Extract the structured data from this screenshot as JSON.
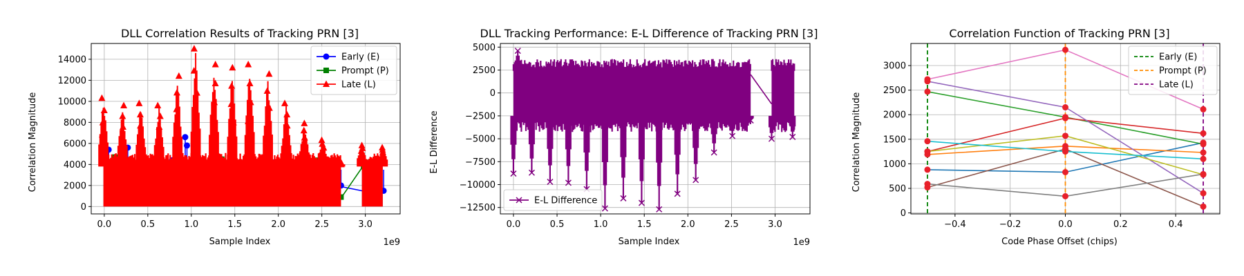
{
  "chart_data": [
    {
      "type": "line",
      "title": "DLL Correlation Results of Tracking PRN [3]",
      "xlabel": "Sample Index",
      "ylabel": "Correlation Magnitude",
      "x_offset_label": "1e9",
      "xlim": [
        -0.15,
        3.4
      ],
      "ylim": [
        -700,
        15500
      ],
      "xticks": [
        0.0,
        0.5,
        1.0,
        1.5,
        2.0,
        2.5,
        3.0
      ],
      "xtick_labels": [
        "0.0",
        "0.5",
        "1.0",
        "1.5",
        "2.0",
        "2.5",
        "3.0"
      ],
      "yticks": [
        0,
        2000,
        4000,
        6000,
        8000,
        10000,
        12000,
        14000
      ],
      "ytick_labels": [
        "0",
        "2000",
        "4000",
        "6000",
        "8000",
        "10000",
        "12000",
        "14000"
      ],
      "grid": true,
      "legend_position": "top-right",
      "series": [
        {
          "name": "Early (E)",
          "color": "#0000ff",
          "marker": "circle",
          "x": [
            0.05,
            0.27,
            0.45,
            0.78,
            0.93,
            0.95,
            1.33,
            1.72,
            1.95,
            2.72,
            3.21
          ],
          "values": [
            5400,
            5600,
            4600,
            4400,
            6600,
            5800,
            4600,
            4400,
            4200,
            2000,
            1500
          ]
        },
        {
          "name": "Prompt (P)",
          "color": "#008000",
          "marker": "square",
          "x": [
            0.12,
            0.42,
            0.88,
            1.35,
            1.65,
            1.82,
            2.42,
            2.72,
            2.98
          ],
          "values": [
            4700,
            4900,
            4400,
            4500,
            4800,
            4600,
            4400,
            900,
            3800
          ]
        },
        {
          "name": "Late (L)",
          "color": "#ff0000",
          "marker": "triangle",
          "x": [
            -0.01,
            0.21,
            0.42,
            0.63,
            0.84,
            1.05,
            1.26,
            1.47,
            1.67,
            1.88,
            2.09,
            2.3,
            2.51,
            2.71,
            2.96,
            3.2
          ],
          "values": [
            10300,
            9600,
            9800,
            9600,
            12400,
            15000,
            13500,
            13200,
            13500,
            12600,
            9800,
            7900,
            6300,
            4000,
            5800,
            5600
          ]
        }
      ]
    },
    {
      "type": "line",
      "title": "DLL Tracking Performance: E-L Difference of Tracking PRN [3]",
      "xlabel": "Sample Index",
      "ylabel": "E-L Difference",
      "x_offset_label": "1e9",
      "xlim": [
        -0.15,
        3.4
      ],
      "ylim": [
        -13200,
        5400
      ],
      "xticks": [
        0.0,
        0.5,
        1.0,
        1.5,
        2.0,
        2.5,
        3.0
      ],
      "xtick_labels": [
        "0.0",
        "0.5",
        "1.0",
        "1.5",
        "2.0",
        "2.5",
        "3.0"
      ],
      "yticks": [
        -12500,
        -10000,
        -7500,
        -5000,
        -2500,
        0,
        2500,
        5000
      ],
      "ytick_labels": [
        "−12500",
        "−10000",
        "−7500",
        "−5000",
        "−2500",
        "0",
        "2500",
        "5000"
      ],
      "grid": true,
      "legend_position": "lower-left",
      "series": [
        {
          "name": "E-L Difference",
          "color": "#800080",
          "marker": "x",
          "x": [
            0.0,
            0.05,
            0.21,
            0.42,
            0.63,
            0.84,
            1.05,
            1.26,
            1.47,
            1.67,
            1.88,
            2.09,
            2.3,
            2.51,
            2.72,
            2.96,
            3.2
          ],
          "values": [
            -8800,
            4600,
            -8700,
            -9700,
            -9800,
            -10500,
            -12600,
            -11500,
            -12000,
            -12700,
            -11000,
            -9500,
            -6500,
            -4700,
            -3000,
            -5000,
            -4800
          ]
        }
      ]
    },
    {
      "type": "line",
      "title": "Correlation Function of Tracking PRN [3]",
      "xlabel": "Code Phase Offset (chips)",
      "ylabel": "Correlation Magnitude",
      "xlim": [
        -0.56,
        0.56
      ],
      "ylim": [
        -20,
        3450
      ],
      "xticks": [
        -0.4,
        -0.2,
        0.0,
        0.2,
        0.4
      ],
      "xtick_labels": [
        "−0.4",
        "−0.2",
        "0.0",
        "0.2",
        "0.4"
      ],
      "yticks": [
        0,
        500,
        1000,
        1500,
        2000,
        2500,
        3000
      ],
      "ytick_labels": [
        "0",
        "500",
        "1000",
        "1500",
        "2000",
        "2500",
        "3000"
      ],
      "grid": true,
      "legend_position": "top-right",
      "x": [
        -0.5,
        0.0,
        0.5
      ],
      "vlines": [
        {
          "name": "Early (E)",
          "x": -0.5,
          "color": "#008000"
        },
        {
          "name": "Prompt (P)",
          "x": 0.0,
          "color": "#ff8c00"
        },
        {
          "name": "Late (L)",
          "x": 0.5,
          "color": "#800080"
        }
      ],
      "series": [
        {
          "color": "#1f77b4",
          "values": [
            880,
            830,
            1430
          ]
        },
        {
          "color": "#ff7f0e",
          "values": [
            1190,
            1360,
            1230
          ]
        },
        {
          "color": "#2ca02c",
          "values": [
            2470,
            1950,
            1400
          ]
        },
        {
          "color": "#d62728",
          "values": [
            1250,
            1930,
            1620
          ]
        },
        {
          "color": "#9467bd",
          "values": [
            2680,
            2150,
            400
          ]
        },
        {
          "color": "#8c564b",
          "values": [
            520,
            1300,
            130
          ]
        },
        {
          "color": "#e377c2",
          "values": [
            2720,
            3320,
            2110
          ]
        },
        {
          "color": "#7f7f7f",
          "values": [
            590,
            340,
            790
          ]
        },
        {
          "color": "#bcbd22",
          "values": [
            1250,
            1570,
            780
          ]
        },
        {
          "color": "#17becf",
          "values": [
            1460,
            1250,
            1100
          ]
        }
      ]
    }
  ]
}
